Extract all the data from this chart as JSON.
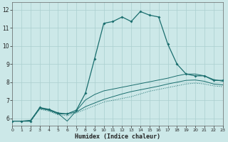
{
  "xlabel": "Humidex (Indice chaleur)",
  "bg_color": "#cce8e8",
  "grid_color": "#aacfcf",
  "line_color": "#1a6e6e",
  "xmin": 0,
  "xmax": 23,
  "ymin": 5.6,
  "ymax": 12.4,
  "yticks": [
    6,
    7,
    8,
    9,
    10,
    11,
    12
  ],
  "xticks": [
    0,
    1,
    2,
    3,
    4,
    5,
    6,
    7,
    8,
    9,
    10,
    11,
    12,
    13,
    14,
    15,
    16,
    17,
    18,
    19,
    20,
    21,
    22,
    23
  ],
  "series_main": {
    "x": [
      0,
      1,
      2,
      3,
      4,
      5,
      6,
      7,
      8,
      9,
      10,
      11,
      12,
      13,
      14,
      15,
      16,
      17,
      18,
      19,
      20,
      21,
      22,
      23
    ],
    "y": [
      5.85,
      5.85,
      5.85,
      6.6,
      6.5,
      6.3,
      6.25,
      6.45,
      7.4,
      9.3,
      11.25,
      11.35,
      11.6,
      11.35,
      11.9,
      11.7,
      11.6,
      10.1,
      9.0,
      8.45,
      8.35,
      8.35,
      8.1,
      8.1
    ]
  },
  "series_dotted": {
    "x": [
      0,
      1,
      2,
      3,
      4,
      5,
      6,
      7,
      8,
      9,
      10,
      11,
      12,
      13,
      14,
      15,
      16,
      17,
      18,
      19,
      20,
      21,
      22,
      23
    ],
    "y": [
      5.85,
      5.85,
      5.85,
      6.5,
      6.4,
      6.2,
      6.15,
      6.3,
      6.5,
      6.7,
      6.9,
      7.0,
      7.1,
      7.2,
      7.35,
      7.5,
      7.6,
      7.7,
      7.8,
      7.9,
      7.95,
      7.9,
      7.8,
      7.75
    ]
  },
  "series_solid1": {
    "x": [
      0,
      1,
      2,
      3,
      4,
      5,
      6,
      7,
      8,
      9,
      10,
      11,
      12,
      13,
      14,
      15,
      16,
      17,
      18,
      19,
      20,
      21,
      22,
      23
    ],
    "y": [
      5.85,
      5.85,
      5.85,
      6.55,
      6.45,
      6.25,
      6.25,
      6.35,
      6.65,
      6.85,
      7.05,
      7.2,
      7.35,
      7.48,
      7.58,
      7.68,
      7.78,
      7.9,
      8.0,
      8.1,
      8.12,
      8.05,
      7.9,
      7.85
    ]
  },
  "series_solid2": {
    "x": [
      0,
      1,
      2,
      3,
      4,
      5,
      6,
      7,
      8,
      9,
      10,
      11,
      12,
      13,
      14,
      15,
      16,
      17,
      18,
      19,
      20,
      21,
      22,
      23
    ],
    "y": [
      5.85,
      5.85,
      5.9,
      6.58,
      6.48,
      6.28,
      5.85,
      6.42,
      7.02,
      7.32,
      7.52,
      7.62,
      7.72,
      7.82,
      7.92,
      8.02,
      8.12,
      8.22,
      8.35,
      8.45,
      8.45,
      8.35,
      8.15,
      8.05
    ]
  }
}
